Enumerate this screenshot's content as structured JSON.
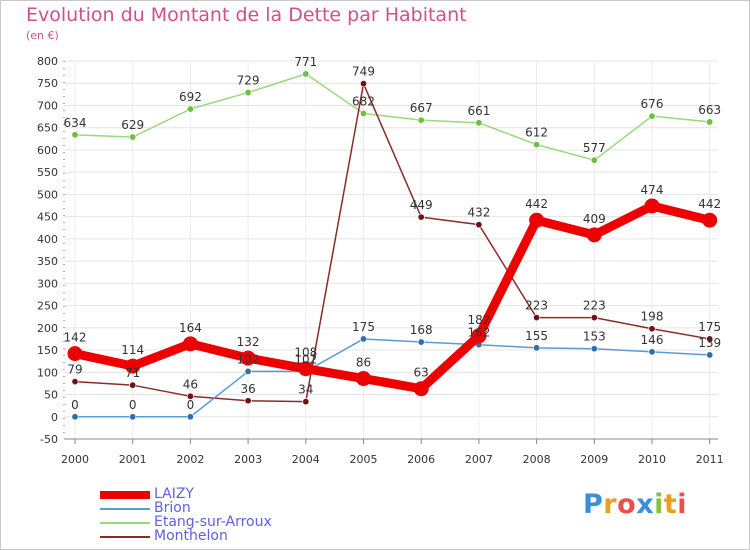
{
  "title": "Evolution du Montant de la Dette par Habitant",
  "subtitle": "(en €)",
  "logo": {
    "text": "Proxiti",
    "letters": [
      {
        "ch": "P",
        "color": "#3a8fd8"
      },
      {
        "ch": "r",
        "color": "#e8a020"
      },
      {
        "ch": "o",
        "color": "#e85050"
      },
      {
        "ch": "x",
        "color": "#3a8fd8"
      },
      {
        "ch": "i",
        "color": "#8ac040"
      },
      {
        "ch": "t",
        "color": "#e8a020"
      },
      {
        "ch": "i",
        "color": "#e85050"
      }
    ]
  },
  "chart_data": {
    "type": "line",
    "title": "Evolution du Montant de la Dette par Habitant",
    "subtitle": "(en €)",
    "x": [
      "2000",
      "2001",
      "2002",
      "2003",
      "2004",
      "2005",
      "2006",
      "2007",
      "2008",
      "2009",
      "2010",
      "2011"
    ],
    "ylim": [
      -50,
      800
    ],
    "yticks": [
      "-50",
      "0",
      "50",
      "100",
      "150",
      "200",
      "250",
      "300",
      "350",
      "400",
      "450",
      "500",
      "550",
      "600",
      "650",
      "700",
      "750",
      "800"
    ],
    "grid": true,
    "legend_position": "bottom-left",
    "series": [
      {
        "name": "LAIZY",
        "color": "#ee0000",
        "point_color": "#ee0000",
        "label_color": "#333333",
        "values": [
          142,
          114,
          164,
          132,
          108,
          86,
          63,
          182,
          442,
          409,
          474,
          442
        ],
        "labels": [
          "142",
          "114",
          "164",
          "132",
          "108",
          "86",
          "63",
          "182",
          "442",
          "409",
          "474",
          "442"
        ]
      },
      {
        "name": "Brion",
        "color": "#5b9bd5",
        "point_color": "#2f6fb0",
        "label_color": "#333333",
        "values": [
          0,
          0,
          0,
          102,
          102,
          175,
          168,
          162,
          155,
          153,
          146,
          139
        ],
        "labels": [
          "0",
          "0",
          "0",
          "102",
          "102",
          "175",
          "168",
          "162",
          "155",
          "153",
          "146",
          "139"
        ]
      },
      {
        "name": "Etang-sur-Arroux",
        "color": "#99d97a",
        "point_color": "#6cc040",
        "label_color": "#333333",
        "values": [
          634,
          629,
          692,
          729,
          771,
          682,
          667,
          661,
          612,
          577,
          676,
          663
        ],
        "labels": [
          "634",
          "629",
          "692",
          "729",
          "771",
          "682",
          "667",
          "661",
          "612",
          "577",
          "676",
          "663"
        ]
      },
      {
        "name": "Monthelon",
        "color": "#8b2b2b",
        "point_color": "#6b1515",
        "label_color": "#333333",
        "values": [
          79,
          71,
          46,
          36,
          34,
          749,
          449,
          432,
          223,
          223,
          198,
          175
        ],
        "labels": [
          "79",
          "71",
          "46",
          "36",
          "34",
          "749",
          "449",
          "432",
          "223",
          "223",
          "198",
          "175"
        ]
      }
    ]
  }
}
